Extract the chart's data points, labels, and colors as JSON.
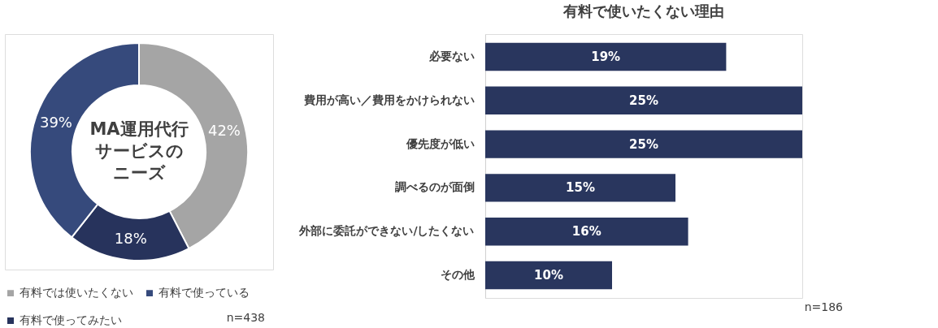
{
  "chart_data": [
    {
      "type": "donut",
      "title": "MA運用代行サービスのニーズ",
      "categories": [
        "有料では使いたくない",
        "有料で使ってみたい",
        "有料で使っている"
      ],
      "values": [
        42,
        18,
        39
      ],
      "colors": [
        "#a5a5a5",
        "#27335c",
        "#364a7c"
      ],
      "value_labels": [
        "42%",
        "18%",
        "39%"
      ],
      "legend": "bottom",
      "annotations": [
        "n=438"
      ]
    },
    {
      "type": "bar",
      "orientation": "horizontal",
      "title": "有料で使いたくない理由",
      "categories": [
        "必要ない",
        "費用が高い／費用をかけられない",
        "優先度が低い",
        "調べるのが面倒",
        "外部に委託ができない/したくない",
        "その他"
      ],
      "values": [
        19,
        25,
        25,
        15,
        16,
        10
      ],
      "color": "#29365e",
      "value_labels": [
        "19%",
        "25%",
        "25%",
        "15%",
        "16%",
        "10%"
      ],
      "annotations": [
        "n=186"
      ]
    }
  ]
}
